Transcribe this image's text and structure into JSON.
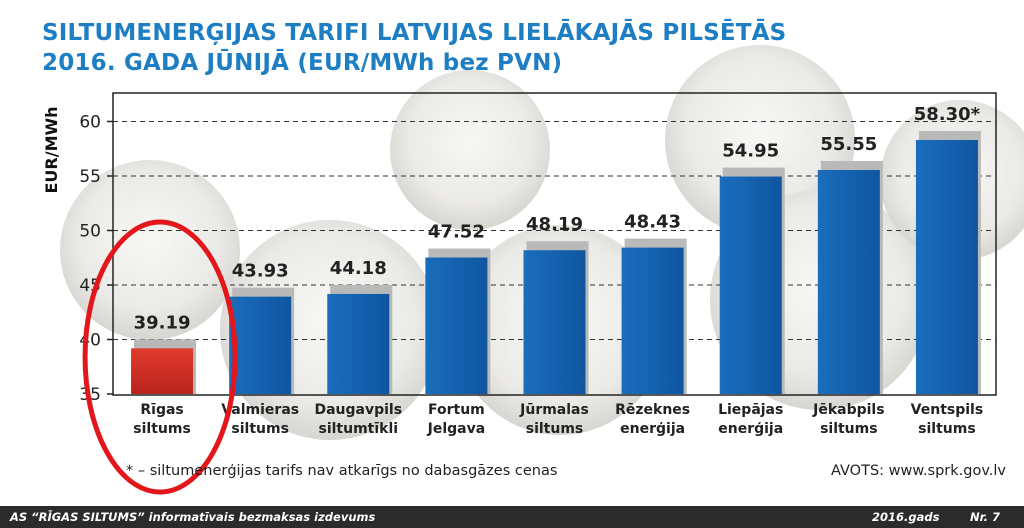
{
  "title_line1": "SILTUMENERĢIJAS TARIFI LATVIJAS LIELĀKAJĀS PILSĒTĀS",
  "title_line2": "2016. GADA JŪNIJĀ (EUR/MWh bez PVN)",
  "colors": {
    "title": "#1e7ec4",
    "bar_blue": "#1664b0",
    "bar_highlight": "#d63228",
    "ellipse": "#e2161b",
    "footer_bg": "#2b2b2b"
  },
  "chart_data": {
    "type": "bar",
    "title": "SILTUMENERĢIJAS TARIFI LATVIJAS LIELĀKAJĀS PILSĒTĀS 2016. GADA JŪNIJĀ (EUR/MWh bez PVN)",
    "ylabel": "EUR/MWh",
    "xlabel": "",
    "ylim": [
      35,
      63
    ],
    "yticks": [
      35,
      40,
      45,
      50,
      55,
      60
    ],
    "grid": true,
    "categories": [
      [
        "Rīgas",
        "siltums"
      ],
      [
        "Valmieras",
        "siltums"
      ],
      [
        "Daugavpils",
        "siltumtīkli"
      ],
      [
        "Fortum",
        "Jelgava"
      ],
      [
        "Jūrmalas",
        "siltums"
      ],
      [
        "Rēzeknes",
        "enerģija"
      ],
      [
        "Liepājas",
        "enerģija"
      ],
      [
        "Jēkabpils",
        "siltums"
      ],
      [
        "Ventspils",
        "siltums"
      ]
    ],
    "values": [
      39.19,
      43.93,
      44.18,
      47.52,
      48.19,
      48.43,
      54.95,
      55.55,
      58.3
    ],
    "value_labels": [
      "39.19",
      "43.93",
      "44.18",
      "47.52",
      "48.19",
      "48.43",
      "54.95",
      "55.55",
      "58.30*"
    ],
    "highlight_index": 0,
    "annotations": {
      "footnote": "* – siltumenerģijas tarifs nav atkarīgs no dabasgāzes cenas",
      "source": "AVOTS: www.sprk.gov.lv"
    }
  },
  "footer": {
    "left": "AS “RĪGAS SILTUMS” informatīvais bezmaksas izdevums",
    "year": "2016.gads",
    "number": "Nr. 7"
  }
}
